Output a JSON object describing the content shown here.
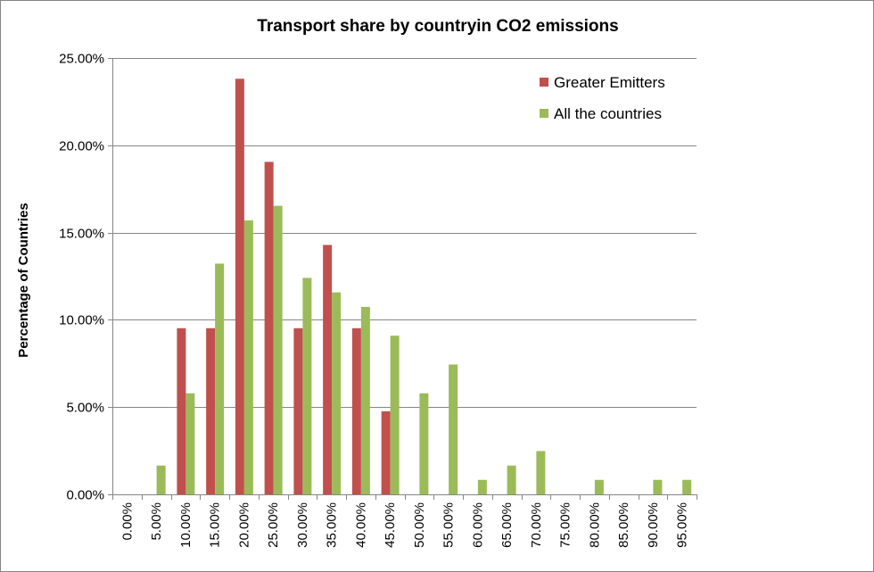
{
  "chart_data": {
    "type": "bar",
    "title": "Transport share by countryin CO2 emissions",
    "xlabel": "",
    "ylabel": "Percentage of Countries",
    "categories": [
      "0.00%",
      "5.00%",
      "10.00%",
      "15.00%",
      "20.00%",
      "25.00%",
      "30.00%",
      "35.00%",
      "40.00%",
      "45.00%",
      "50.00%",
      "55.00%",
      "60.00%",
      "65.00%",
      "70.00%",
      "75.00%",
      "80.00%",
      "85.00%",
      "90.00%",
      "95.00%"
    ],
    "series": [
      {
        "name": "Greater Emitters",
        "color": "#c0504d",
        "values": [
          0,
          0,
          9.52,
          9.52,
          23.81,
          19.05,
          9.52,
          14.29,
          9.52,
          4.76,
          0,
          0,
          0,
          0,
          0,
          0,
          0,
          0,
          0,
          0
        ]
      },
      {
        "name": "All the countries",
        "color": "#9bbb59",
        "values": [
          0,
          1.65,
          5.79,
          13.22,
          15.7,
          16.53,
          12.4,
          11.57,
          10.74,
          9.09,
          5.79,
          7.44,
          0.83,
          1.65,
          2.48,
          0,
          0.83,
          0,
          0.83,
          0.83
        ]
      }
    ],
    "y_ticks": [
      "0.00%",
      "5.00%",
      "10.00%",
      "15.00%",
      "20.00%",
      "25.00%"
    ],
    "ylim": [
      0,
      25
    ],
    "grid": true,
    "legend_position": "top-right"
  }
}
